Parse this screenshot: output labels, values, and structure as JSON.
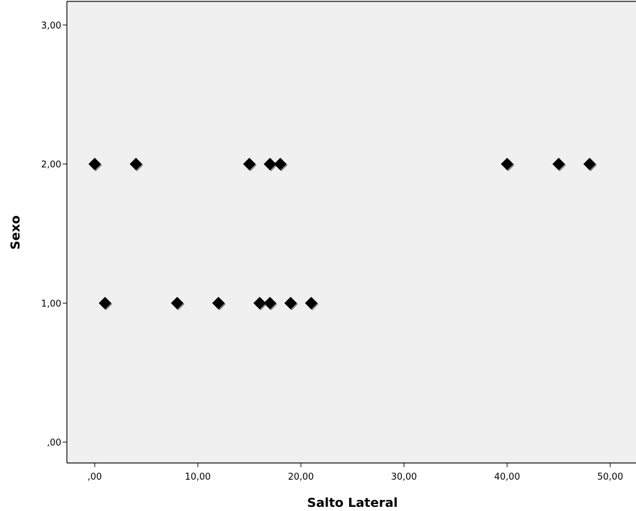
{
  "chart_data": {
    "type": "scatter",
    "title": "",
    "xlabel": "Salto Lateral",
    "ylabel": "Sexo",
    "xlim": [
      -2.7,
      52.5
    ],
    "ylim": [
      -0.15,
      3.17
    ],
    "xticks": [
      0,
      10,
      20,
      30,
      40,
      50
    ],
    "yticks": [
      0,
      1,
      2,
      3
    ],
    "xtick_labels": [
      ",00",
      "10,00",
      "20,00",
      "30,00",
      "40,00",
      "50,00"
    ],
    "ytick_labels": [
      ",00",
      "1,00",
      "2,00",
      "3,00"
    ],
    "grid": false,
    "legend": "none",
    "marker": "diamond",
    "colors": {
      "plot_background": "#f0f0f0",
      "marker_fill": "#000000",
      "marker_shadow": "#888888",
      "axis": "#000000"
    },
    "series": [
      {
        "points": [
          {
            "x": 0,
            "y": 2
          },
          {
            "x": 4,
            "y": 2
          },
          {
            "x": 15,
            "y": 2
          },
          {
            "x": 17,
            "y": 2
          },
          {
            "x": 18,
            "y": 2
          },
          {
            "x": 40,
            "y": 2
          },
          {
            "x": 45,
            "y": 2
          },
          {
            "x": 48,
            "y": 2
          },
          {
            "x": 1,
            "y": 1
          },
          {
            "x": 8,
            "y": 1
          },
          {
            "x": 12,
            "y": 1
          },
          {
            "x": 16,
            "y": 1
          },
          {
            "x": 17,
            "y": 1
          },
          {
            "x": 19,
            "y": 1
          },
          {
            "x": 21,
            "y": 1
          }
        ]
      }
    ]
  }
}
